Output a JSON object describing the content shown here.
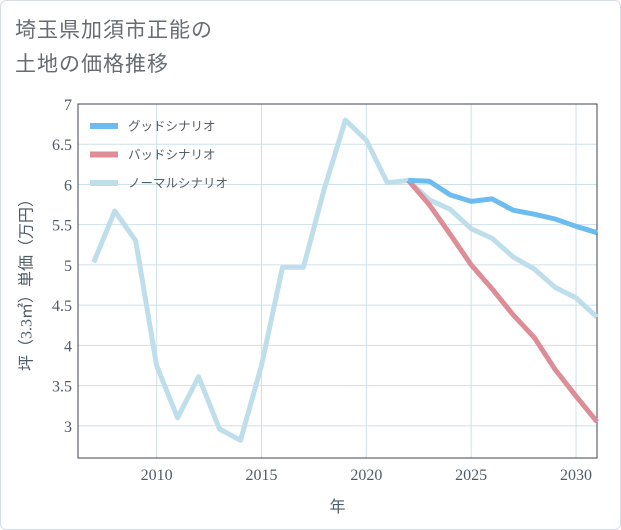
{
  "title_lines": [
    "埼玉県加須市正能の",
    "土地の価格推移"
  ],
  "chart_data": {
    "type": "line",
    "xlabel": "年",
    "ylabel": "坪（3.3㎡）単価（万円）",
    "xlim": [
      2006.25,
      2031
    ],
    "ylim": [
      2.6,
      7
    ],
    "x_ticks": [
      2010,
      2015,
      2020,
      2025,
      2030
    ],
    "y_ticks": [
      3,
      3.5,
      4,
      4.5,
      5,
      5.5,
      6,
      6.5,
      7
    ],
    "y_tick_labels": [
      "3",
      "3.5",
      "4",
      "4.5",
      "5",
      "5.5",
      "6",
      "6.5",
      "7"
    ],
    "grid": true,
    "legend_position": "top-left",
    "series": [
      {
        "name": "グッドシナリオ",
        "color": "#6cbcf0",
        "x": [
          2022,
          2023,
          2024,
          2025,
          2026,
          2027,
          2028,
          2029,
          2030,
          2031
        ],
        "y": [
          6.05,
          6.04,
          5.87,
          5.79,
          5.82,
          5.68,
          5.63,
          5.57,
          5.48,
          5.4
        ]
      },
      {
        "name": "バッドシナリオ",
        "color": "#de8d96",
        "x": [
          2022,
          2023,
          2024,
          2025,
          2026,
          2027,
          2028,
          2029,
          2030,
          2031
        ],
        "y": [
          6.05,
          5.75,
          5.38,
          5.0,
          4.7,
          4.38,
          4.1,
          3.7,
          3.37,
          3.05
        ]
      },
      {
        "name": "ノーマルシナリオ",
        "color": "#bfdeeb",
        "x": [
          2007,
          2008,
          2009,
          2010,
          2011,
          2012,
          2013,
          2014,
          2015,
          2016,
          2017,
          2018,
          2019,
          2020,
          2021,
          2022,
          2023,
          2024,
          2025,
          2026,
          2027,
          2028,
          2029,
          2030,
          2031
        ],
        "y": [
          5.03,
          5.67,
          5.3,
          3.75,
          3.1,
          3.61,
          2.96,
          2.82,
          3.75,
          4.97,
          4.97,
          5.95,
          6.8,
          6.55,
          6.02,
          6.05,
          5.81,
          5.69,
          5.45,
          5.33,
          5.1,
          4.95,
          4.72,
          4.59,
          4.35
        ]
      }
    ]
  }
}
